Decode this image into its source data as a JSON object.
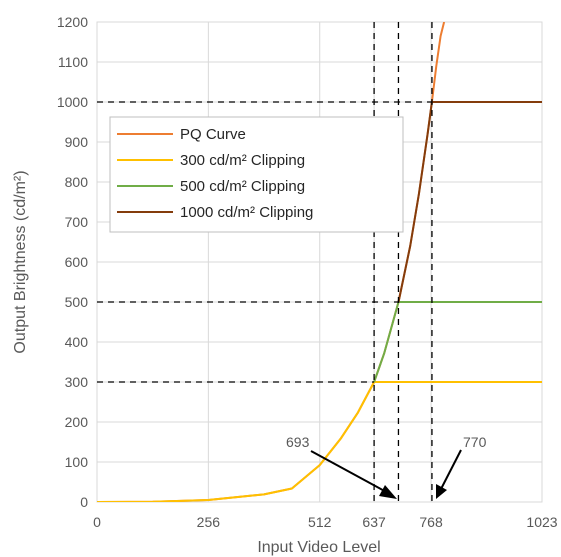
{
  "chart_data": {
    "type": "line",
    "xlabel": "Input Video Level",
    "ylabel": "Output Brightness (cd/m²)",
    "xlim": [
      0,
      1023
    ],
    "ylim": [
      0,
      1200
    ],
    "x_ticks": [
      0,
      256,
      512,
      637,
      768,
      1023
    ],
    "y_ticks": [
      0,
      100,
      200,
      300,
      400,
      500,
      600,
      700,
      800,
      900,
      1000,
      1100,
      1200
    ],
    "grid": true,
    "legend_position": "top-left",
    "series": [
      {
        "name": "PQ Curve",
        "color": "#ED7D31",
        "x": [
          0,
          128,
          256,
          384,
          448,
          512,
          560,
          600,
          637,
          660,
          693,
          720,
          740,
          760,
          770,
          780,
          790,
          798
        ],
        "y": [
          0,
          0.6,
          4.9,
          18.9,
          33.8,
          92.2,
          158,
          224,
          300,
          371,
          500,
          640,
          770,
          920,
          1000,
          1090,
          1165,
          1200
        ]
      },
      {
        "name": "300 cd/m² Clipping",
        "color": "#FFC000",
        "x": [
          0,
          128,
          256,
          384,
          448,
          512,
          560,
          600,
          637,
          1023
        ],
        "y": [
          0,
          0.6,
          4.9,
          18.9,
          33.8,
          92.2,
          158,
          224,
          300,
          300
        ]
      },
      {
        "name": "500 cd/m² Clipping",
        "color": "#70AD47",
        "x": [
          637,
          660,
          693,
          1023
        ],
        "y": [
          300,
          371,
          500,
          500
        ]
      },
      {
        "name": "1000 cd/m² Clipping",
        "color": "#843C0C",
        "x": [
          693,
          720,
          740,
          760,
          770,
          1023
        ],
        "y": [
          500,
          640,
          770,
          920,
          1000,
          1000
        ]
      }
    ],
    "reference_lines": {
      "horizontal": [
        {
          "y": 1000,
          "x_end": 770
        },
        {
          "y": 500,
          "x_end": 693
        },
        {
          "y": 300,
          "x_end": 637
        }
      ],
      "vertical": [
        637,
        693,
        770
      ]
    },
    "annotations": [
      {
        "text": "693",
        "x": 693
      },
      {
        "text": "770",
        "x": 770
      }
    ]
  }
}
